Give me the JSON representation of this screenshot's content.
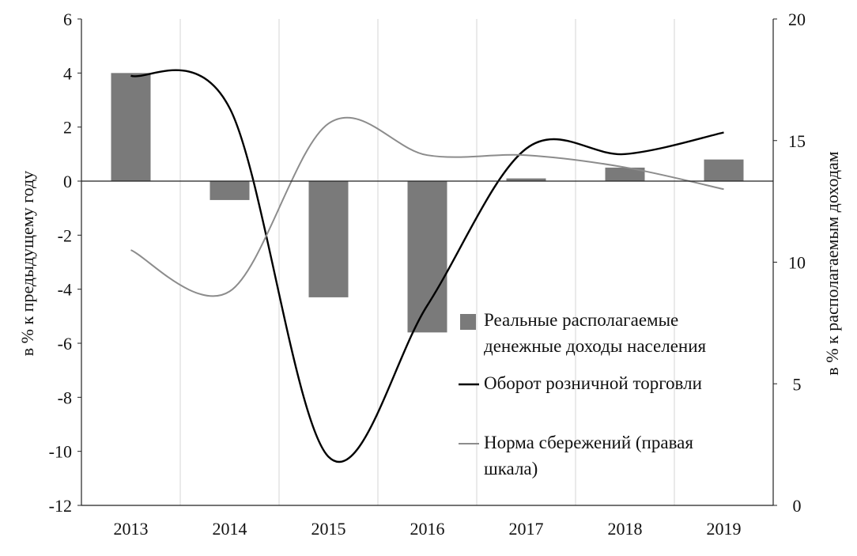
{
  "chart_data": {
    "type": "bar+line",
    "categories": [
      "2013",
      "2014",
      "2015",
      "2016",
      "2017",
      "2018",
      "2019"
    ],
    "y_left": {
      "label": "в % к предыдущему году",
      "min": -12,
      "max": 6,
      "step": 2,
      "ticks": [
        "6",
        "4",
        "2",
        "0",
        "-2",
        "-4",
        "-6",
        "-8",
        "-10",
        "-12"
      ]
    },
    "y_right": {
      "label": "в % к располагаемым доходам",
      "min": 0,
      "max": 20,
      "step": 5,
      "ticks": [
        "20",
        "15",
        "10",
        "5",
        "0"
      ]
    },
    "series": [
      {
        "name": "Реальные располагаемые денежные доходы населения",
        "legend_lines": [
          "Реальные располагаемые",
          "денежные доходы населения"
        ],
        "type": "bar",
        "axis": "left",
        "color": "#7a7a7a",
        "values": [
          4.0,
          -0.7,
          -4.3,
          -5.6,
          0.1,
          0.5,
          0.8
        ]
      },
      {
        "name": "Оборот розничной торговли",
        "legend_lines": [
          "Оборот розничной торговли"
        ],
        "type": "line",
        "axis": "left",
        "color": "#000000",
        "values": [
          3.9,
          2.7,
          -10.2,
          -4.6,
          1.2,
          1.0,
          1.8
        ]
      },
      {
        "name": "Норма сбережений (правая шкала)",
        "legend_lines": [
          "Норма сбережений (правая",
          "шкала)"
        ],
        "type": "line",
        "axis": "right",
        "color": "#8c8c8c",
        "values": [
          10.5,
          8.8,
          15.7,
          14.4,
          14.4,
          13.9,
          13.0
        ]
      }
    ],
    "grid": "vertical",
    "legend_position": "lower-right"
  }
}
